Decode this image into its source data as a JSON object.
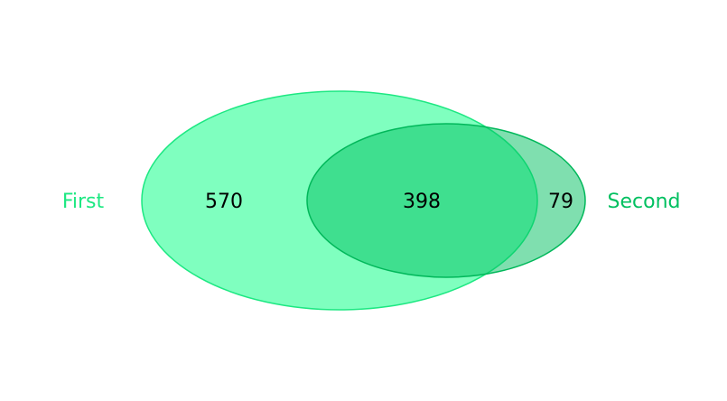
{
  "venn": {
    "sets": [
      {
        "label": "First",
        "only_count": "570",
        "color": "#00ff80",
        "label_color": "#1de882"
      },
      {
        "label": "Second",
        "only_count": "79",
        "color": "#00c060",
        "label_color": "#00c060"
      }
    ],
    "intersection_count": "398"
  }
}
